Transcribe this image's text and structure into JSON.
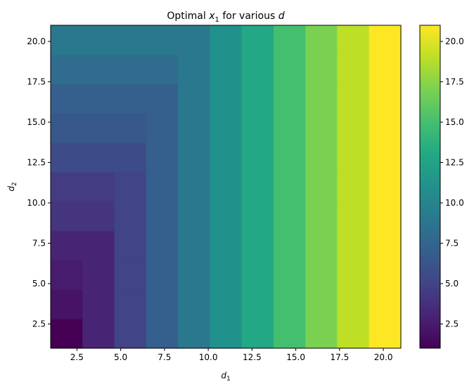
{
  "chart_data": {
    "type": "heatmap",
    "title": {
      "prefix": "Optimal ",
      "var": "x",
      "sub": "1",
      "suffix": " for various ",
      "var2": "d"
    },
    "xlabel": {
      "var": "d",
      "sub": "1"
    },
    "ylabel": {
      "var": "d",
      "sub": "2"
    },
    "xlim": [
      1.0,
      21.0
    ],
    "ylim": [
      1.0,
      21.0
    ],
    "x_edges": [
      1.0,
      2.82,
      4.64,
      6.45,
      8.27,
      10.09,
      11.91,
      13.73,
      15.55,
      17.36,
      19.18,
      21.0
    ],
    "y_edges": [
      1.0,
      2.82,
      4.64,
      6.45,
      8.27,
      10.09,
      11.91,
      13.73,
      15.55,
      17.36,
      19.18,
      21.0
    ],
    "values": [
      [
        1.0,
        3.0,
        5.0,
        7.0,
        9.0,
        11.0,
        13.0,
        15.0,
        17.0,
        19.0,
        21.0
      ],
      [
        2.0,
        3.0,
        5.0,
        7.0,
        9.0,
        11.0,
        13.0,
        15.0,
        17.0,
        19.0,
        21.0
      ],
      [
        2.5,
        3.0,
        5.0,
        7.0,
        9.0,
        11.0,
        13.0,
        15.0,
        17.0,
        19.0,
        21.0
      ],
      [
        3.0,
        3.0,
        5.0,
        7.0,
        9.0,
        11.0,
        13.0,
        15.0,
        17.0,
        19.0,
        21.0
      ],
      [
        4.0,
        4.0,
        5.0,
        7.0,
        9.0,
        11.0,
        13.0,
        15.0,
        17.0,
        19.0,
        21.0
      ],
      [
        4.5,
        4.5,
        5.0,
        7.0,
        9.0,
        11.0,
        13.0,
        15.0,
        17.0,
        19.0,
        21.0
      ],
      [
        5.5,
        5.5,
        5.5,
        7.0,
        9.0,
        11.0,
        13.0,
        15.0,
        17.0,
        19.0,
        21.0
      ],
      [
        6.5,
        6.5,
        6.5,
        7.0,
        9.0,
        11.0,
        13.0,
        15.0,
        17.0,
        19.0,
        21.0
      ],
      [
        7.0,
        7.0,
        7.0,
        7.0,
        9.0,
        11.0,
        13.0,
        15.0,
        17.0,
        19.0,
        21.0
      ],
      [
        8.0,
        8.0,
        8.0,
        8.0,
        9.0,
        11.0,
        13.0,
        15.0,
        17.0,
        19.0,
        21.0
      ],
      [
        9.0,
        9.0,
        9.0,
        9.0,
        9.0,
        11.0,
        13.0,
        15.0,
        17.0,
        19.0,
        21.0
      ]
    ],
    "x_ticks": [
      2.5,
      5.0,
      7.5,
      10.0,
      12.5,
      15.0,
      17.5,
      20.0
    ],
    "x_tick_labels": [
      "2.5",
      "5.0",
      "7.5",
      "10.0",
      "12.5",
      "15.0",
      "17.5",
      "20.0"
    ],
    "y_ticks": [
      2.5,
      5.0,
      7.5,
      10.0,
      12.5,
      15.0,
      17.5,
      20.0
    ],
    "y_tick_labels": [
      "2.5",
      "5.0",
      "7.5",
      "10.0",
      "12.5",
      "15.0",
      "17.5",
      "20.0"
    ],
    "colorbar": {
      "colormap": "viridis",
      "vmin": 1.0,
      "vmax": 21.0,
      "ticks": [
        2.5,
        5.0,
        7.5,
        10.0,
        12.5,
        15.0,
        17.5,
        20.0
      ],
      "tick_labels": [
        "2.5",
        "5.0",
        "7.5",
        "10.0",
        "12.5",
        "15.0",
        "17.5",
        "20.0"
      ]
    },
    "grid": false,
    "legend": "none"
  }
}
